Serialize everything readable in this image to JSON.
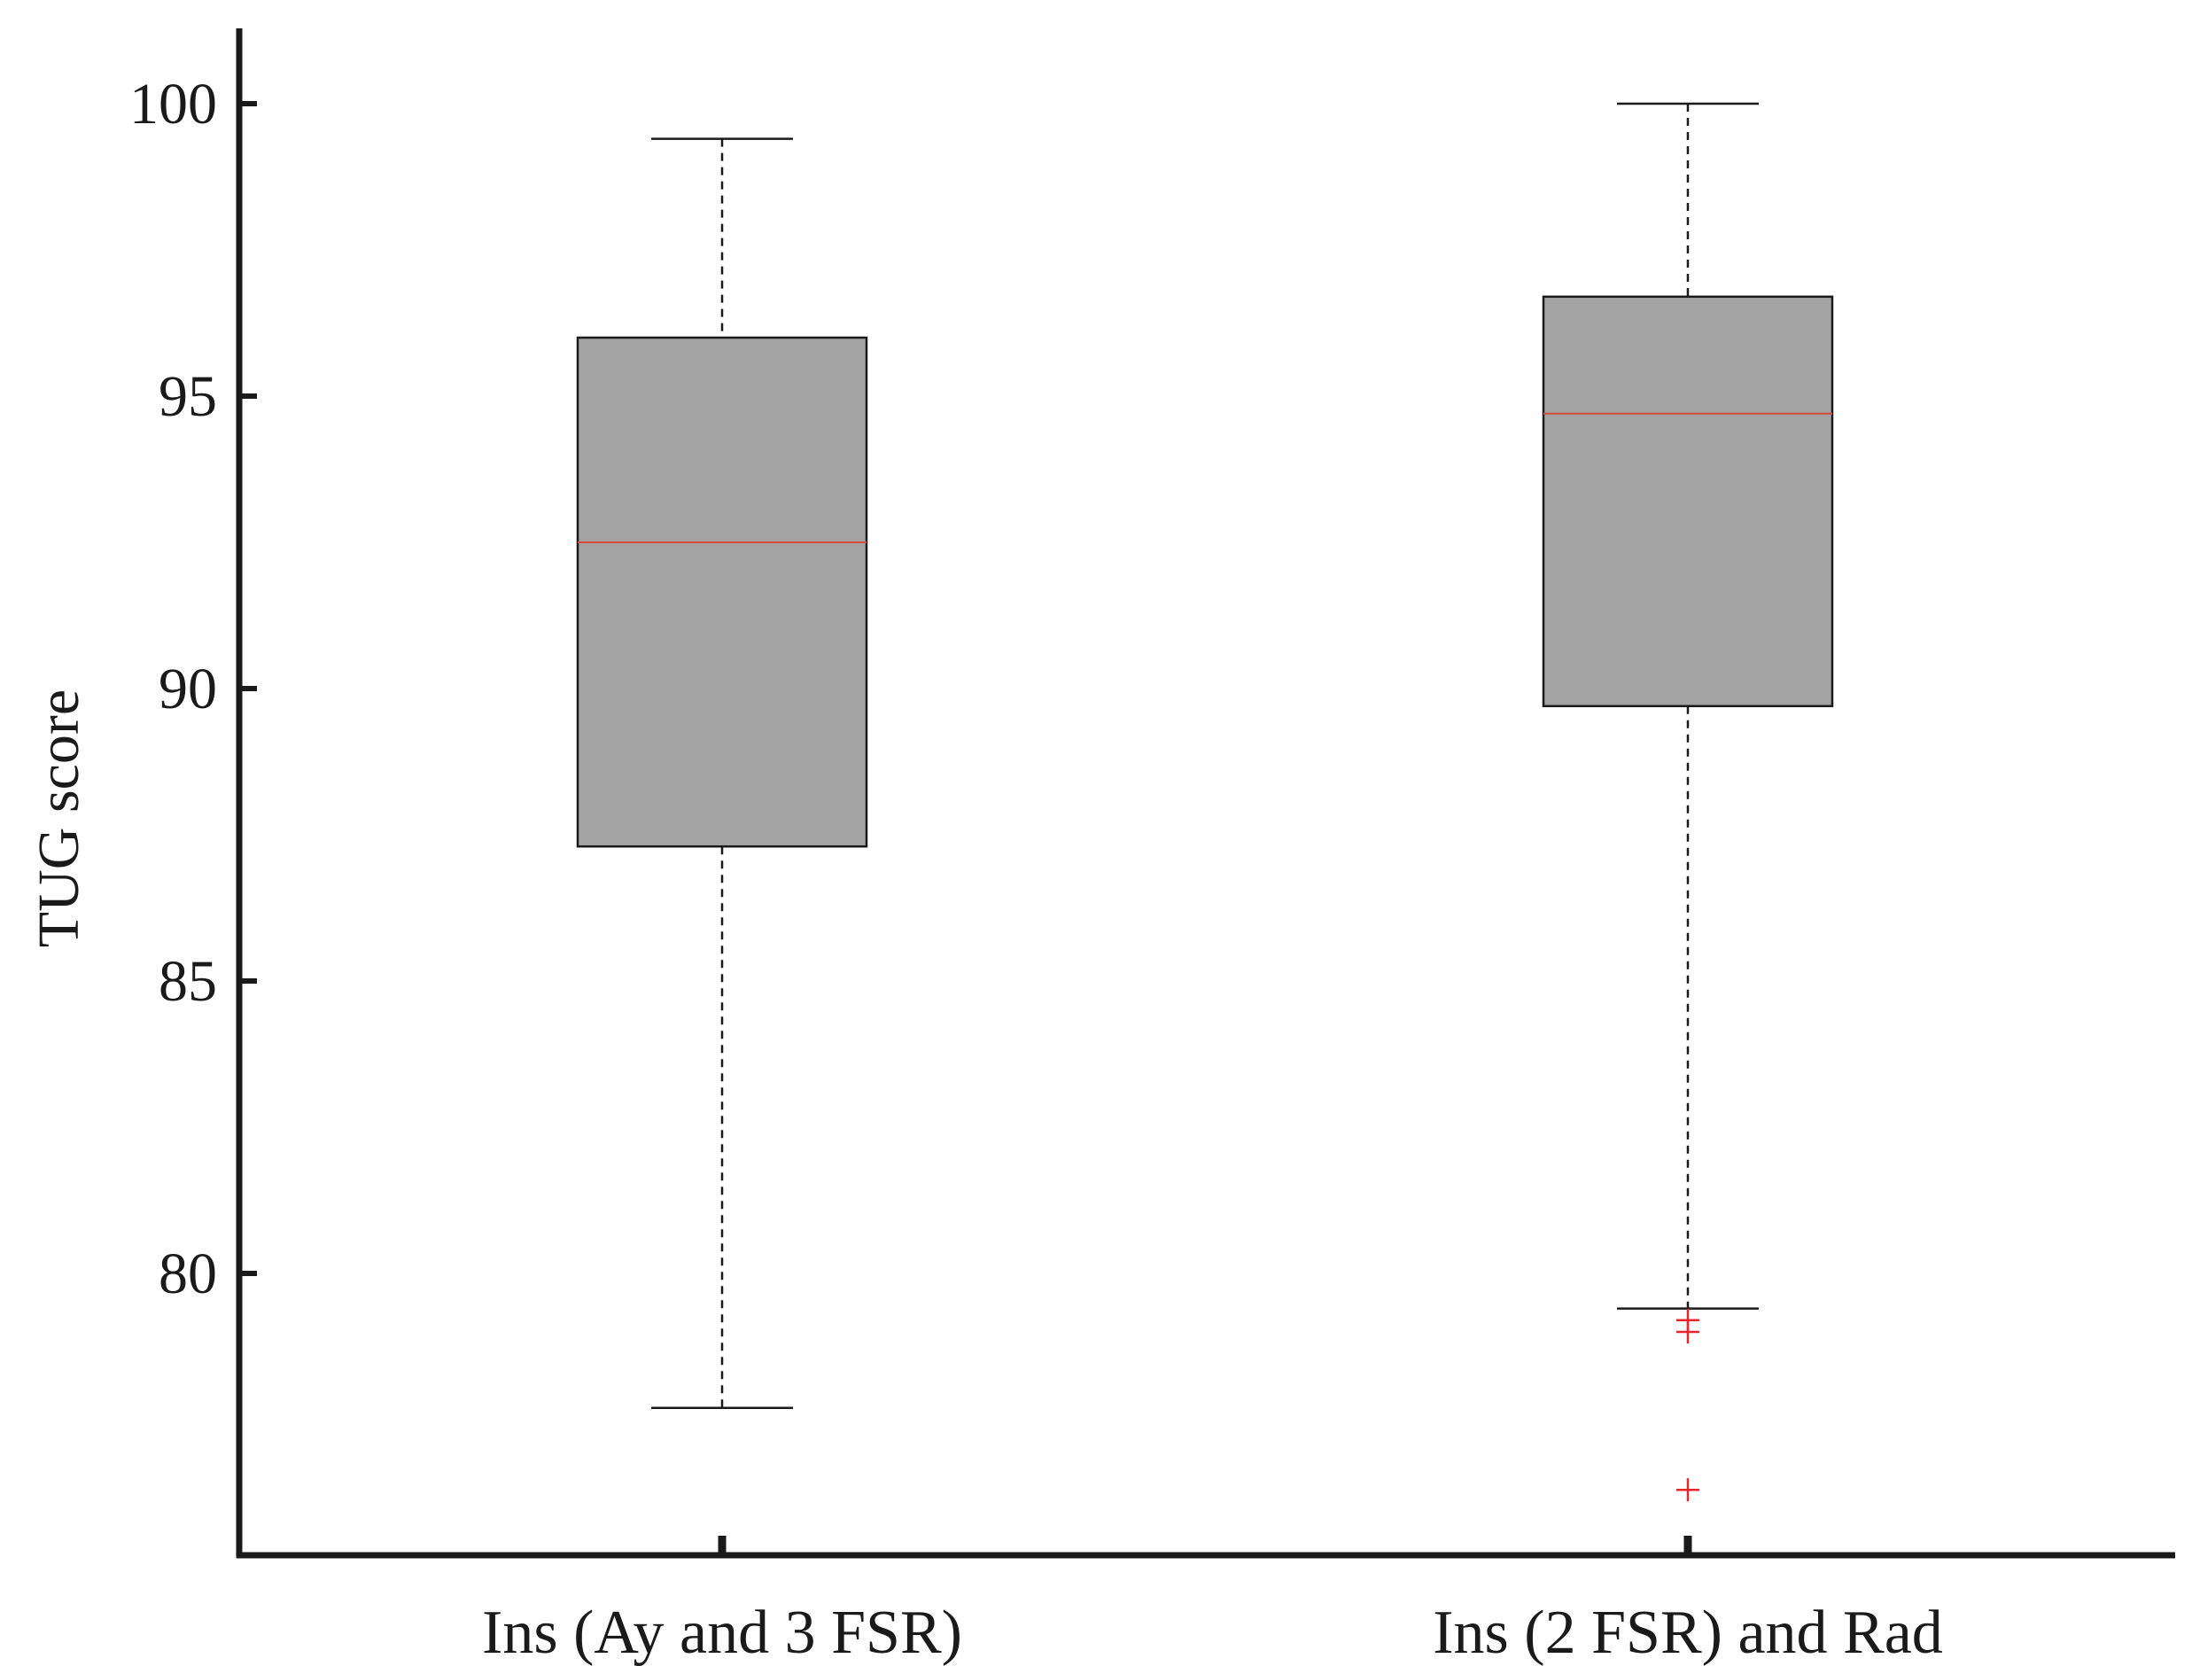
{
  "chart_data": {
    "type": "box",
    "title": "",
    "xlabel": "",
    "ylabel": "TUG score",
    "ylim": [
      75.2,
      101.3
    ],
    "yticks": [
      80,
      85,
      90,
      95,
      100
    ],
    "grid": false,
    "categories": [
      "Ins (Ay and 3 FSR)",
      "Ins (2 FSR) and Rad"
    ],
    "boxes": [
      {
        "category": "Ins (Ay and 3 FSR)",
        "whisker_low": 77.7,
        "q1": 87.3,
        "median": 92.5,
        "q3": 96.0,
        "whisker_high": 99.4,
        "outliers": []
      },
      {
        "category": "Ins (2 FSR) and Rad",
        "whisker_low": 79.4,
        "q1": 89.7,
        "median": 94.7,
        "q3": 96.7,
        "whisker_high": 100.0,
        "outliers": [
          79.2,
          79.0,
          76.3
        ]
      }
    ],
    "colors": {
      "box_fill": "#a3a3a3",
      "box_stroke": "#1a1a1a",
      "median": "#d94a3d",
      "outlier": "#e8262a",
      "axis": "#1a1a1a",
      "text": "#1a1a1a"
    }
  }
}
